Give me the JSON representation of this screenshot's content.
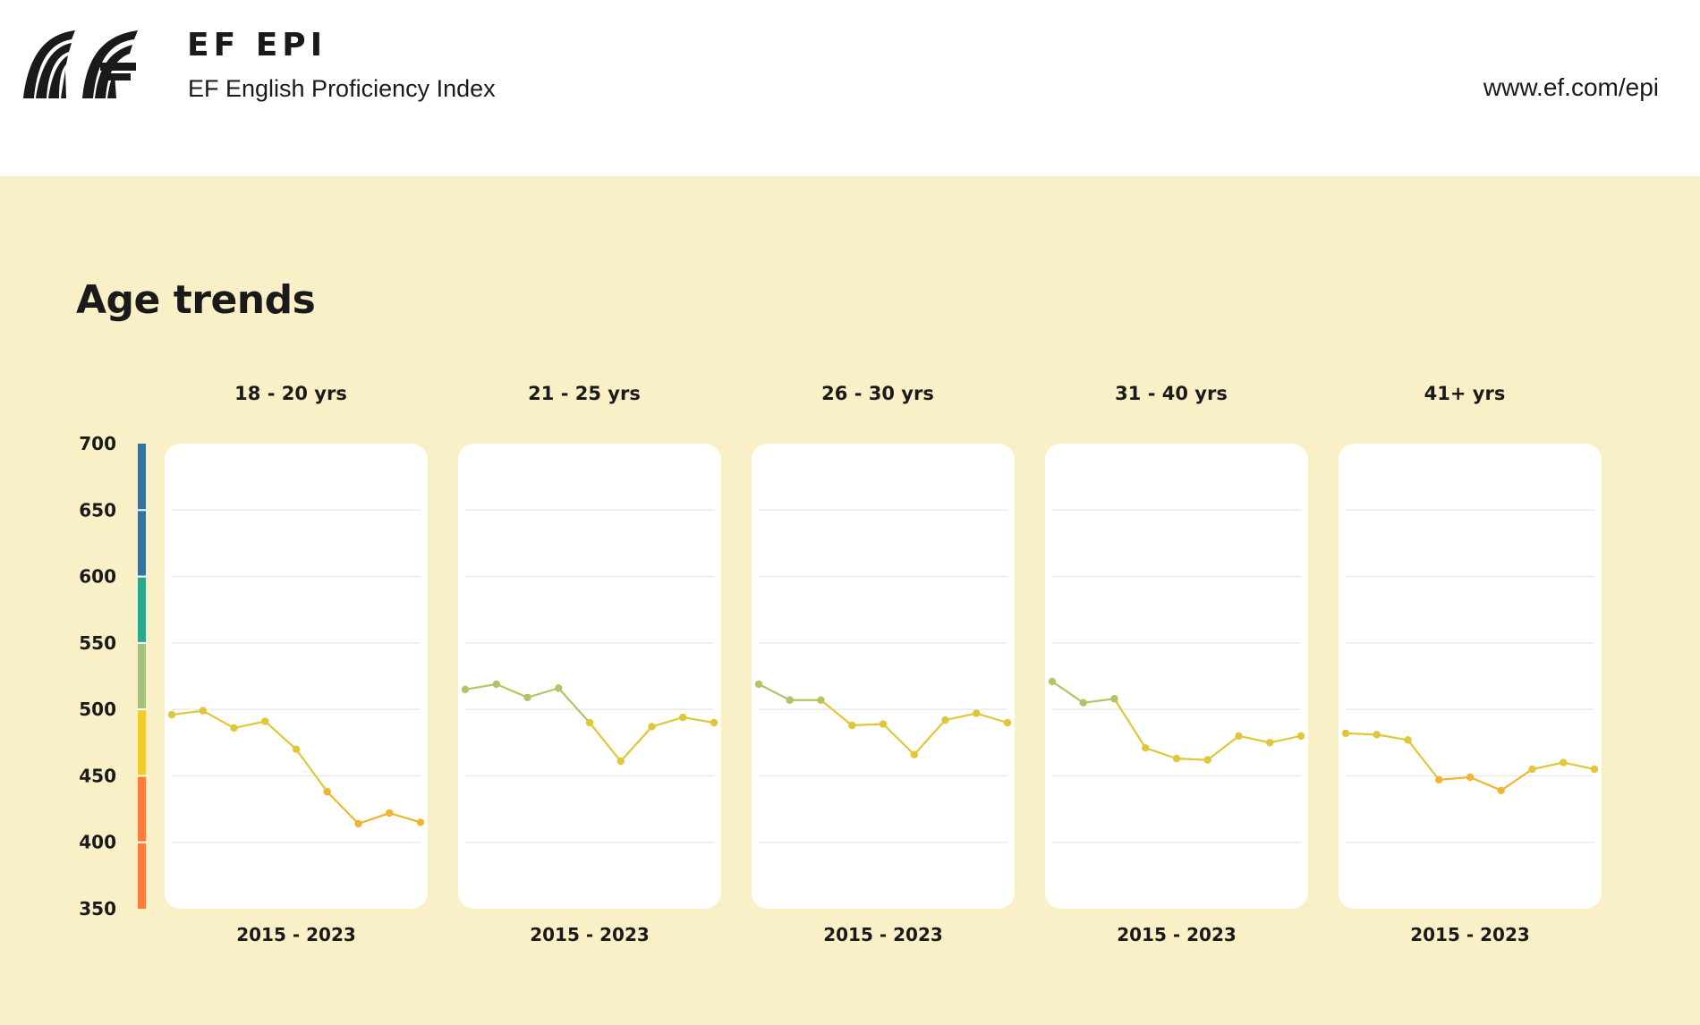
{
  "header": {
    "brand_title": "EF EPI",
    "brand_subtitle": "EF English Proficiency Index",
    "url": "www.ef.com/epi"
  },
  "section": {
    "title": "Age trends"
  },
  "colors": {
    "background": "#faf0c8",
    "very_high": "#35739e",
    "high": "#2aa98e",
    "moderate": "#a3c07c",
    "low": "#f0cb2c",
    "very_low": "#ff7b3a",
    "line_moderate": "#b3c466",
    "line_low": "#e0c63a",
    "line_very_low": "#f0b530"
  },
  "chart_data": {
    "type": "line",
    "title": "Age trends",
    "ylim": [
      350,
      700
    ],
    "yticks": [
      "700",
      "650",
      "600",
      "550",
      "500",
      "450",
      "400",
      "350"
    ],
    "grid": true,
    "band_scale": [
      {
        "from": 600,
        "to": 700,
        "color": "#35739e"
      },
      {
        "from": 550,
        "to": 600,
        "color": "#2aa98e"
      },
      {
        "from": 500,
        "to": 550,
        "color": "#a3c07c"
      },
      {
        "from": 450,
        "to": 500,
        "color": "#f0cb2c"
      },
      {
        "from": 350,
        "to": 450,
        "color": "#ff7b3a"
      }
    ],
    "x": [
      2015,
      2016,
      2017,
      2018,
      2019,
      2020,
      2021,
      2022,
      2023
    ],
    "panels": [
      {
        "label": "18 - 20 yrs",
        "xlabel": "2015 - 2023",
        "values": [
          496,
          499,
          486,
          491,
          470,
          438,
          414,
          422,
          415
        ]
      },
      {
        "label": "21 - 25 yrs",
        "xlabel": "2015 - 2023",
        "values": [
          515,
          519,
          509,
          516,
          490,
          461,
          487,
          494,
          490
        ]
      },
      {
        "label": "26 - 30 yrs",
        "xlabel": "2015 - 2023",
        "values": [
          519,
          507,
          507,
          488,
          489,
          466,
          492,
          497,
          490
        ]
      },
      {
        "label": "31 - 40 yrs",
        "xlabel": "2015 - 2023",
        "values": [
          521,
          505,
          508,
          471,
          463,
          462,
          480,
          475,
          480
        ]
      },
      {
        "label": "41+ yrs",
        "xlabel": "2015 - 2023",
        "values": [
          482,
          481,
          477,
          447,
          449,
          439,
          455,
          460,
          455
        ]
      }
    ]
  }
}
